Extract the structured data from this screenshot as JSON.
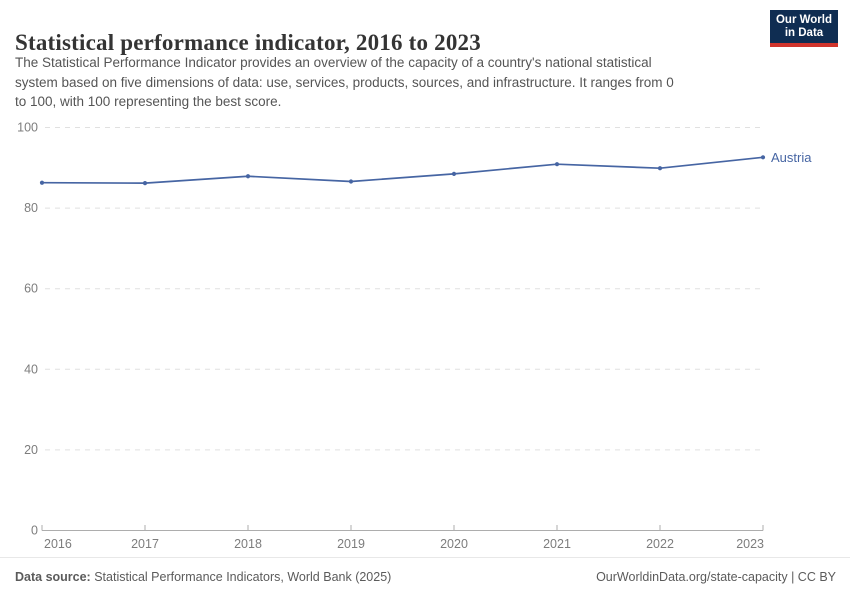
{
  "header": {
    "title": "Statistical performance indicator, 2016 to 2023",
    "logo": {
      "line1": "Our World",
      "line2": "in Data"
    }
  },
  "subtitle": {
    "lines": [
      "The Statistical Performance Indicator provides an overview of the capacity of a country's national statistical",
      "system based on five dimensions of data: use, services, products, sources, and infrastructure. It ranges from 0",
      "to 100, with 100 representing the best score."
    ]
  },
  "chart_data": {
    "type": "line",
    "title": "Statistical performance indicator, 2016 to 2023",
    "x": [
      2016,
      2017,
      2018,
      2019,
      2020,
      2021,
      2022,
      2023
    ],
    "series": [
      {
        "name": "Austria",
        "color": "#4665a3",
        "values": [
          86.3,
          86.2,
          87.9,
          86.6,
          88.5,
          90.9,
          89.9,
          92.6
        ]
      }
    ],
    "xlabel": "",
    "ylabel": "",
    "ylim": [
      0,
      100
    ],
    "yticks": [
      0,
      20,
      40,
      60,
      80,
      100
    ],
    "grid": "horizontal-dashed",
    "legend_position": "line-end-label"
  },
  "footer": {
    "data_source_label": "Data source:",
    "data_source_value": " Statistical Performance Indicators, World Bank (2025)",
    "right_text": "OurWorldinData.org/state-capacity | CC BY"
  },
  "colors": {
    "line": "#4665a3",
    "grid": "#e0e0e0",
    "axis": "#adadad",
    "tick_label": "#7d7d7d",
    "title_text": "#343434",
    "body_text": "#555555",
    "logo_bg": "#0f2d52",
    "logo_stripe": "#d0342c"
  }
}
